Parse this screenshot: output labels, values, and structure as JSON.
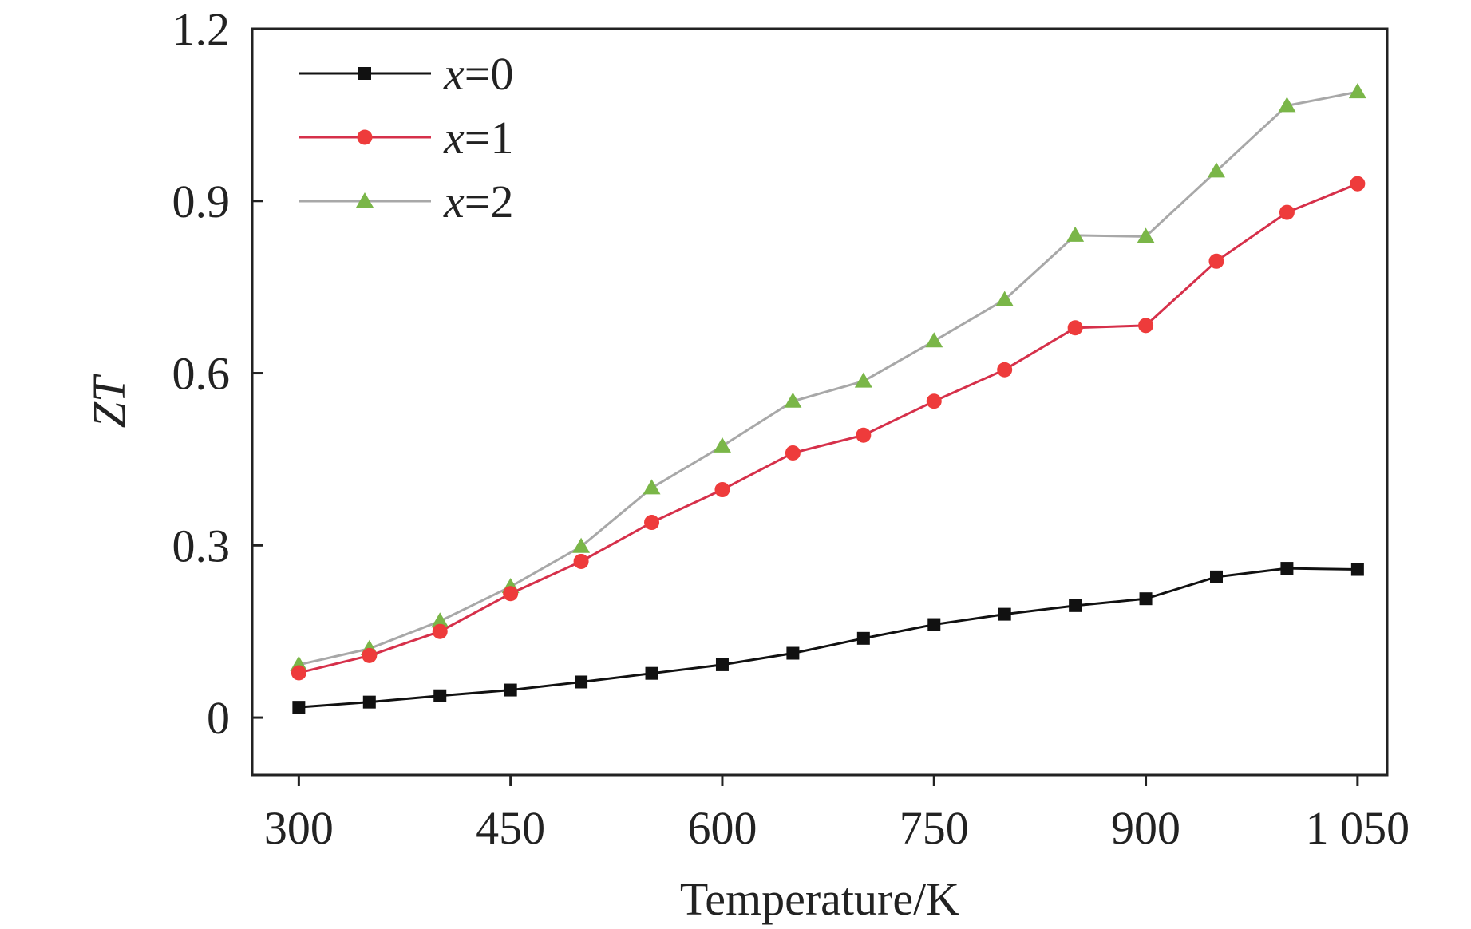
{
  "chart_data": {
    "type": "line",
    "xlabel": "Temperature/K",
    "ylabel": "ZT",
    "xlim": [
      267,
      1071
    ],
    "ylim": [
      -0.1,
      1.2
    ],
    "xticks": [
      300,
      450,
      600,
      750,
      900,
      1050
    ],
    "xtick_labels": [
      "300",
      "450",
      "600",
      "750",
      "900",
      "1 050"
    ],
    "yticks": [
      0,
      0.3,
      0.6,
      0.9,
      1.2
    ],
    "ytick_labels": [
      "0",
      "0.3",
      "0.6",
      "0.9",
      "1.2"
    ],
    "grid": false,
    "legend_position": "top-left",
    "x": [
      300,
      350,
      400,
      450,
      500,
      550,
      600,
      650,
      700,
      750,
      800,
      850,
      900,
      950,
      1000,
      1050
    ],
    "series": [
      {
        "name": "x=0",
        "legend_var": "x",
        "legend_rest": "=0",
        "color": "#111111",
        "marker": "square",
        "values": [
          0.018,
          0.027,
          0.038,
          0.048,
          0.062,
          0.077,
          0.092,
          0.112,
          0.138,
          0.162,
          0.18,
          0.195,
          0.207,
          0.245,
          0.26,
          0.258
        ]
      },
      {
        "name": "x=1",
        "legend_var": "x",
        "legend_rest": "=1",
        "color": "#d6304a",
        "marker_color": "#ee3b3b",
        "marker": "circle",
        "values": [
          0.078,
          0.108,
          0.15,
          0.216,
          0.272,
          0.34,
          0.397,
          0.461,
          0.492,
          0.551,
          0.606,
          0.679,
          0.683,
          0.795,
          0.88,
          0.93
        ]
      },
      {
        "name": "x=2",
        "legend_var": "x",
        "legend_rest": "=2",
        "color": "#a8a8a8",
        "marker_color": "#7ab648",
        "marker": "triangle",
        "values": [
          0.092,
          0.12,
          0.168,
          0.228,
          0.298,
          0.4,
          0.473,
          0.551,
          0.586,
          0.656,
          0.728,
          0.84,
          0.838,
          0.952,
          1.066,
          1.09
        ]
      }
    ]
  }
}
